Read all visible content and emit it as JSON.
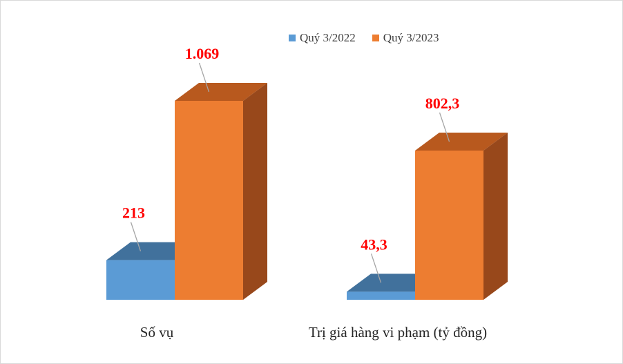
{
  "chart_data": {
    "type": "bar",
    "categories": [
      "Số vụ",
      "Trị giá hàng vi phạm (tỷ đồng)"
    ],
    "series": [
      {
        "name": "Quý 3/2022",
        "color": "#5b9bd5",
        "values": [
          213,
          43.3
        ],
        "labels": [
          "213",
          "43,3"
        ]
      },
      {
        "name": "Quý 3/2023",
        "color": "#ed7d31",
        "values": [
          1069,
          802.3
        ],
        "labels": [
          "1.069",
          "802,3"
        ]
      }
    ],
    "legend": "top",
    "grid": false,
    "label_color": "#ff0000",
    "title": "",
    "xlabel": "",
    "ylabel": ""
  }
}
